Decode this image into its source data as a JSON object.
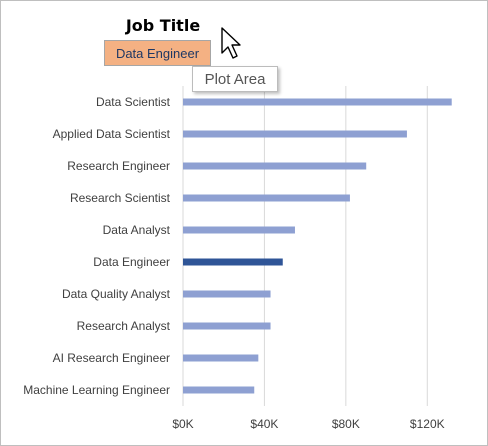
{
  "header": {
    "title": "Job Title"
  },
  "slicer": {
    "selected": "Data Engineer"
  },
  "tooltip": {
    "text": "Plot Area"
  },
  "colors": {
    "bar": "#8ea0d2",
    "bar_selected": "#2f5597",
    "grid": "#d9d9d9",
    "slicer_bg": "#f4b183"
  },
  "chart_data": {
    "type": "bar",
    "orientation": "horizontal",
    "categories": [
      "Data Scientist",
      "Applied Data Scientist",
      "Research Engineer",
      "Research Scientist",
      "Data Analyst",
      "Data Engineer",
      "Data Quality Analyst",
      "Research Analyst",
      "AI Research Engineer",
      "Machine Learning Engineer"
    ],
    "values": [
      132000,
      110000,
      90000,
      82000,
      55000,
      49000,
      43000,
      43000,
      37000,
      35000
    ],
    "highlight": "Data Engineer",
    "xlim": [
      0,
      140000
    ],
    "xticks": [
      0,
      40000,
      80000,
      120000
    ],
    "xtick_labels": [
      "$0K",
      "$40K",
      "$80K",
      "$120K"
    ],
    "grid": "vertical",
    "legend": "none"
  }
}
